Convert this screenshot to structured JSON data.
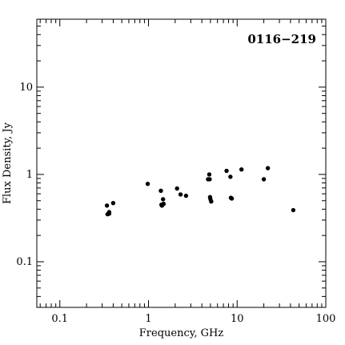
{
  "chart_data": {
    "type": "scatter",
    "title": "0116−219",
    "xlabel": "Frequency, GHz",
    "ylabel": "Flux Density, Jy",
    "x_scale": "log",
    "y_scale": "log",
    "xlim": [
      0.055,
      100
    ],
    "ylim": [
      0.03,
      60
    ],
    "x_ticks": [
      {
        "value": 0.1,
        "label": "0.1"
      },
      {
        "value": 1,
        "label": "1"
      },
      {
        "value": 10,
        "label": "10"
      },
      {
        "value": 100,
        "label": "100"
      }
    ],
    "y_ticks": [
      {
        "value": 0.1,
        "label": "0.1"
      },
      {
        "value": 1,
        "label": "1"
      },
      {
        "value": 10,
        "label": "10"
      }
    ],
    "grid": false,
    "series": [
      {
        "points": [
          {
            "x": 0.34,
            "y": 0.44
          },
          {
            "x": 0.345,
            "y": 0.35
          },
          {
            "x": 0.36,
            "y": 0.37
          },
          {
            "x": 0.36,
            "y": 0.355
          },
          {
            "x": 0.4,
            "y": 0.47
          },
          {
            "x": 0.98,
            "y": 0.78
          },
          {
            "x": 1.38,
            "y": 0.65
          },
          {
            "x": 1.4,
            "y": 0.45
          },
          {
            "x": 1.42,
            "y": 0.44
          },
          {
            "x": 1.46,
            "y": 0.52
          },
          {
            "x": 1.48,
            "y": 0.46
          },
          {
            "x": 2.1,
            "y": 0.69
          },
          {
            "x": 2.3,
            "y": 0.59
          },
          {
            "x": 2.65,
            "y": 0.57
          },
          {
            "x": 4.7,
            "y": 0.88
          },
          {
            "x": 4.85,
            "y": 1.0
          },
          {
            "x": 4.9,
            "y": 0.88
          },
          {
            "x": 4.95,
            "y": 0.55
          },
          {
            "x": 5.0,
            "y": 0.52
          },
          {
            "x": 5.1,
            "y": 0.49
          },
          {
            "x": 7.6,
            "y": 1.1
          },
          {
            "x": 8.4,
            "y": 0.94
          },
          {
            "x": 8.5,
            "y": 0.54
          },
          {
            "x": 8.7,
            "y": 0.53
          },
          {
            "x": 11.2,
            "y": 1.14
          },
          {
            "x": 20.0,
            "y": 0.88
          },
          {
            "x": 22.2,
            "y": 1.18
          },
          {
            "x": 43.0,
            "y": 0.39
          }
        ]
      }
    ]
  }
}
